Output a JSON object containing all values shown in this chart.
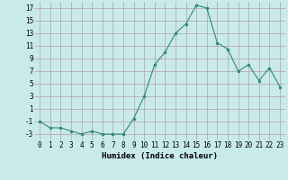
{
  "x": [
    0,
    1,
    2,
    3,
    4,
    5,
    6,
    7,
    8,
    9,
    10,
    11,
    12,
    13,
    14,
    15,
    16,
    17,
    18,
    19,
    20,
    21,
    22,
    23
  ],
  "y": [
    -1,
    -2,
    -2,
    -2.5,
    -3,
    -2.5,
    -3,
    -3,
    -3,
    -0.5,
    3,
    8,
    10,
    13,
    14.5,
    17.5,
    17,
    11.5,
    10.5,
    7,
    8,
    5.5,
    7.5,
    4.5
  ],
  "line_color": "#2e8b72",
  "marker_color": "#2e8b72",
  "bg_color": "#c8eaea",
  "grid_major_color": "#b8a0a0",
  "grid_minor_color": "#d8c0c0",
  "xlabel": "Humidex (Indice chaleur)",
  "ylim": [
    -4,
    18
  ],
  "yticks": [
    -3,
    -1,
    1,
    3,
    5,
    7,
    9,
    11,
    13,
    15,
    17
  ],
  "xticks": [
    0,
    1,
    2,
    3,
    4,
    5,
    6,
    7,
    8,
    9,
    10,
    11,
    12,
    13,
    14,
    15,
    16,
    17,
    18,
    19,
    20,
    21,
    22,
    23
  ],
  "xlabel_fontsize": 6.5,
  "tick_fontsize": 5.5
}
